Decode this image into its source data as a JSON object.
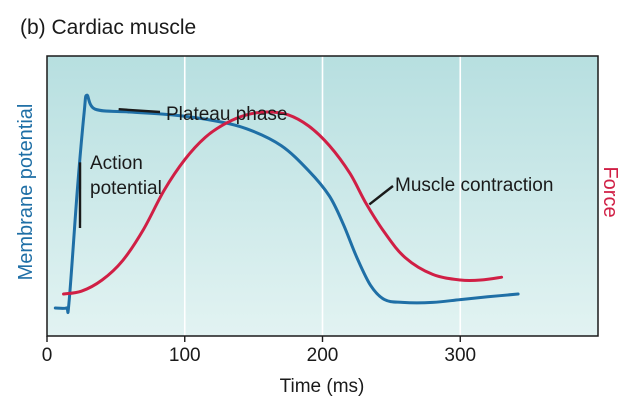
{
  "panel_title": "(b)  Cardiac muscle",
  "colors": {
    "membrane": "#1f6fa6",
    "force": "#d01f45",
    "background_top": "#b7dfe0",
    "background_bottom": "#e2f3f2"
  },
  "chart_data": {
    "type": "line",
    "title": "(b)  Cardiac muscle",
    "xlabel": "Time (ms)",
    "ylabel_left": "Membrane potential",
    "ylabel_right": "Force",
    "xlim": [
      0,
      400
    ],
    "ylim": [
      0,
      1
    ],
    "grid": "vertical",
    "x_ticks": [
      0,
      100,
      200,
      300
    ],
    "x_tick_labels": [
      "0",
      "100",
      "200",
      "300"
    ],
    "series": [
      {
        "name": "Membrane potential",
        "color": "#1f6fa6",
        "points": [
          [
            6,
            0.1
          ],
          [
            14,
            0.1
          ],
          [
            16,
            0.12
          ],
          [
            22,
            0.52
          ],
          [
            27,
            0.8
          ],
          [
            29,
            0.86
          ],
          [
            35,
            0.81
          ],
          [
            60,
            0.8
          ],
          [
            90,
            0.79
          ],
          [
            120,
            0.77
          ],
          [
            145,
            0.74
          ],
          [
            170,
            0.68
          ],
          [
            190,
            0.59
          ],
          [
            205,
            0.5
          ],
          [
            215,
            0.4
          ],
          [
            225,
            0.28
          ],
          [
            235,
            0.18
          ],
          [
            245,
            0.13
          ],
          [
            258,
            0.12
          ],
          [
            280,
            0.12
          ],
          [
            300,
            0.13
          ],
          [
            320,
            0.14
          ],
          [
            342,
            0.15
          ]
        ]
      },
      {
        "name": "Force",
        "color": "#d01f45",
        "points": [
          [
            12,
            0.15
          ],
          [
            25,
            0.16
          ],
          [
            40,
            0.2
          ],
          [
            55,
            0.27
          ],
          [
            70,
            0.38
          ],
          [
            85,
            0.52
          ],
          [
            100,
            0.63
          ],
          [
            115,
            0.71
          ],
          [
            130,
            0.76
          ],
          [
            145,
            0.79
          ],
          [
            160,
            0.8
          ],
          [
            175,
            0.79
          ],
          [
            190,
            0.75
          ],
          [
            205,
            0.68
          ],
          [
            220,
            0.58
          ],
          [
            232,
            0.47
          ],
          [
            245,
            0.37
          ],
          [
            260,
            0.28
          ],
          [
            280,
            0.22
          ],
          [
            300,
            0.2
          ],
          [
            315,
            0.2
          ],
          [
            330,
            0.21
          ]
        ]
      }
    ],
    "annotations": [
      {
        "id": "plateau",
        "lines": [
          "Plateau phase"
        ],
        "target": [
          52,
          0.81
        ]
      },
      {
        "id": "action",
        "lines": [
          "Action",
          "potential"
        ],
        "target": [
          24,
          0.62
        ]
      },
      {
        "id": "contraction",
        "lines": [
          "Muscle contraction"
        ],
        "target": [
          234,
          0.47
        ]
      }
    ]
  }
}
